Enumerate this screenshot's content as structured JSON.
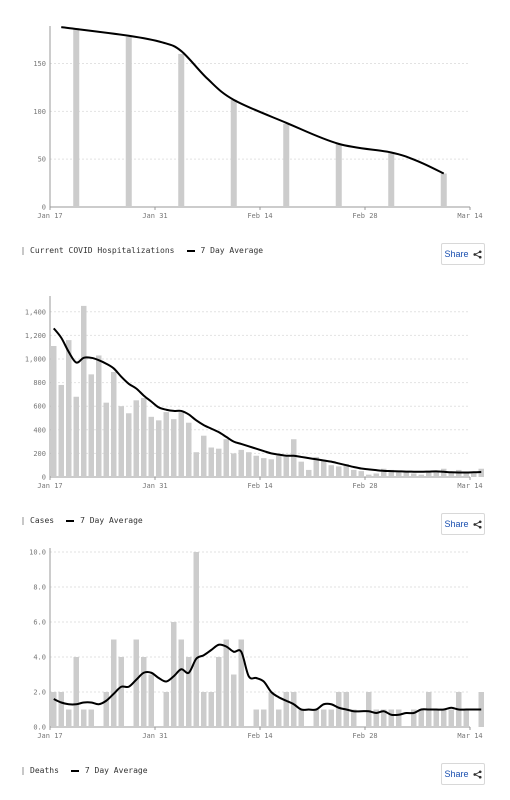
{
  "colors": {
    "bar": "#cccccc",
    "line": "#000000",
    "grid": "#e2e2e2",
    "axis": "#999999",
    "share_text": "#1a4fb0"
  },
  "share_label": "Share",
  "share_icon": "share-icon",
  "chart_data": [
    {
      "type": "bar",
      "legend": {
        "bar_label": "Current COVID Hospitalizations",
        "line_label": "7 Day Average"
      },
      "x_ticks": [
        "Jan 17",
        "Jan 31",
        "Feb 14",
        "Feb 28",
        "Mar 14"
      ],
      "x_range": [
        0,
        56
      ],
      "ylim": [
        0,
        185
      ],
      "y_ticks": [
        0,
        50,
        100,
        150
      ],
      "y_tick_labels": [
        "0",
        "50",
        "100",
        "150"
      ],
      "bars": [
        {
          "x": 3.5,
          "y": 187
        },
        {
          "x": 10.5,
          "y": 178
        },
        {
          "x": 17.5,
          "y": 160
        },
        {
          "x": 24.5,
          "y": 112
        },
        {
          "x": 31.5,
          "y": 87
        },
        {
          "x": 38.5,
          "y": 66
        },
        {
          "x": 45.5,
          "y": 57
        },
        {
          "x": 52.5,
          "y": 35
        }
      ],
      "line": [
        {
          "x": 1.5,
          "y": 188
        },
        {
          "x": 10.5,
          "y": 179
        },
        {
          "x": 15,
          "y": 172
        },
        {
          "x": 17.5,
          "y": 163
        },
        {
          "x": 21,
          "y": 134
        },
        {
          "x": 24.5,
          "y": 112
        },
        {
          "x": 31.5,
          "y": 88
        },
        {
          "x": 38.5,
          "y": 66
        },
        {
          "x": 45.5,
          "y": 57
        },
        {
          "x": 49,
          "y": 48
        },
        {
          "x": 52.5,
          "y": 35
        }
      ]
    },
    {
      "type": "bar",
      "legend": {
        "bar_label": "Cases",
        "line_label": "7 Day Average"
      },
      "x_ticks": [
        "Jan 17",
        "Jan 31",
        "Feb 14",
        "Feb 28",
        "Mar 14"
      ],
      "x_range": [
        0,
        56
      ],
      "ylim": [
        0,
        1500
      ],
      "y_ticks": [
        0,
        200,
        400,
        600,
        800,
        1000,
        1200,
        1400
      ],
      "y_tick_labels": [
        "0",
        "200",
        "400",
        "600",
        "800",
        "1,000",
        "1,200",
        "1,400"
      ],
      "values": [
        1110,
        780,
        1160,
        680,
        1450,
        870,
        1030,
        630,
        890,
        600,
        540,
        650,
        670,
        510,
        480,
        550,
        490,
        550,
        460,
        210,
        350,
        250,
        240,
        320,
        200,
        230,
        210,
        180,
        160,
        150,
        180,
        170,
        320,
        130,
        60,
        170,
        140,
        100,
        90,
        110,
        60,
        50,
        20,
        30,
        70,
        60,
        40,
        50,
        30,
        20,
        40,
        50,
        70,
        40,
        60,
        40,
        30,
        70
      ],
      "line": [
        1260,
        1180,
        1060,
        970,
        1010,
        1010,
        990,
        960,
        920,
        850,
        790,
        750,
        690,
        640,
        590,
        570,
        560,
        560,
        530,
        480,
        440,
        410,
        380,
        340,
        300,
        280,
        260,
        240,
        220,
        200,
        190,
        180,
        180,
        170,
        160,
        150,
        140,
        130,
        115,
        100,
        85,
        72,
        65,
        58,
        52,
        50,
        48,
        46,
        45,
        44,
        46,
        48,
        44,
        40,
        38,
        38,
        40,
        42
      ]
    },
    {
      "type": "bar",
      "legend": {
        "bar_label": "Deaths",
        "line_label": "7 Day Average"
      },
      "x_ticks": [
        "Jan 17",
        "Jan 31",
        "Feb 14",
        "Feb 28",
        "Mar 14"
      ],
      "x_range": [
        0,
        56
      ],
      "ylim": [
        0,
        10
      ],
      "y_ticks": [
        0,
        2,
        4,
        6,
        8,
        10
      ],
      "y_tick_labels": [
        "0.0",
        "2.0",
        "4.0",
        "6.0",
        "8.0",
        "10.0"
      ],
      "values": [
        2,
        2,
        1,
        4,
        1,
        1,
        0,
        2,
        5,
        4,
        0,
        5,
        4,
        3,
        0,
        2,
        6,
        5,
        4,
        10,
        2,
        2,
        4,
        5,
        3,
        5,
        0,
        1,
        1,
        2,
        1,
        2,
        2,
        1,
        0,
        1,
        1,
        1,
        2,
        2,
        1,
        0,
        2,
        1,
        1,
        1,
        1,
        0,
        1,
        1,
        2,
        1,
        1,
        1,
        2,
        1,
        0,
        2
      ],
      "line": [
        1.6,
        1.4,
        1.3,
        1.3,
        1.4,
        1.4,
        1.3,
        1.5,
        1.9,
        2.3,
        2.3,
        2.7,
        3.1,
        3.1,
        2.8,
        2.6,
        2.9,
        3.3,
        3.1,
        3.9,
        4.1,
        4.4,
        4.7,
        4.6,
        4.3,
        4.3,
        2.9,
        2.8,
        2.6,
        2.0,
        1.7,
        1.5,
        1.3,
        1.0,
        1.0,
        1.0,
        1.3,
        1.3,
        1.1,
        1.0,
        0.9,
        0.9,
        0.9,
        0.8,
        0.9,
        0.7,
        0.7,
        0.8,
        0.8,
        1.0,
        1.0,
        1.0,
        1.0,
        1.1,
        1.0,
        1.0,
        1.0,
        1.0
      ]
    }
  ]
}
